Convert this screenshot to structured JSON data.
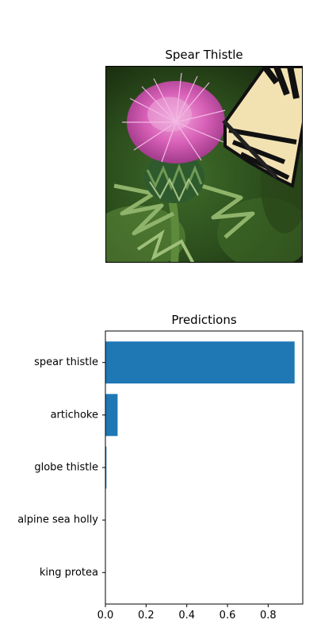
{
  "image_panel": {
    "title": "Spear Thistle"
  },
  "chart_data": {
    "type": "bar",
    "orientation": "horizontal",
    "title": "Predictions",
    "xlabel": "",
    "ylabel": "",
    "categories": [
      "spear thistle",
      "artichoke",
      "globe thistle",
      "alpine sea holly",
      "king protea"
    ],
    "values": [
      0.93,
      0.06,
      0.005,
      0.001,
      0.0005
    ],
    "xlim": [
      0,
      0.97
    ],
    "xticks": [
      0.0,
      0.2,
      0.4,
      0.6,
      0.8
    ],
    "xtick_labels": [
      "0.0",
      "0.2",
      "0.4",
      "0.6",
      "0.8"
    ],
    "bar_color": "#1f77b4",
    "grid": false,
    "legend": "none"
  }
}
